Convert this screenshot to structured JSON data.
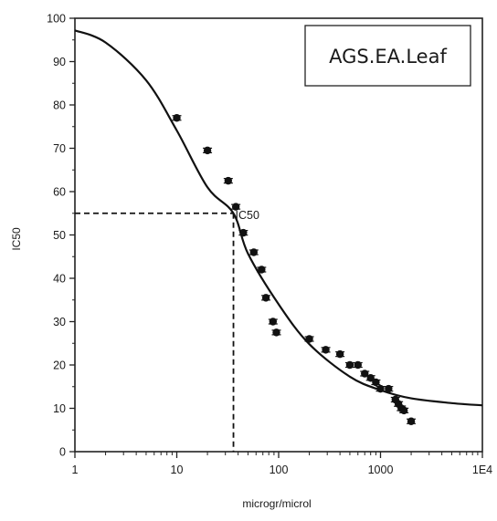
{
  "chart_data": {
    "type": "scatter",
    "title": "AGS.EA.Leaf",
    "xlabel": "microgr/microl",
    "ylabel": "IC50",
    "x_scale": "log",
    "xlim": [
      1,
      10000
    ],
    "ylim": [
      0,
      100
    ],
    "x_ticks": [
      {
        "value": 1,
        "label": "1"
      },
      {
        "value": 10,
        "label": "10"
      },
      {
        "value": 100,
        "label": "100"
      },
      {
        "value": 1000,
        "label": "1000"
      },
      {
        "value": 10000,
        "label": "1E4"
      }
    ],
    "y_ticks": [
      0,
      10,
      20,
      30,
      40,
      50,
      60,
      70,
      80,
      90,
      100
    ],
    "grid": false,
    "legend_position": "top-right",
    "series": [
      {
        "kind": "points",
        "x": [
          10,
          20,
          32,
          38,
          45,
          57,
          68,
          75,
          88,
          95,
          200,
          290,
          400,
          500,
          600,
          700,
          800,
          900,
          1000,
          1200,
          1400,
          1500,
          1600,
          1700,
          2000
        ],
        "y": [
          77,
          69.5,
          62.5,
          56.5,
          50.5,
          46,
          42,
          35.5,
          30,
          27.5,
          26,
          23.5,
          22.5,
          20,
          20,
          18,
          17,
          16,
          14.5,
          14.5,
          12,
          11,
          10,
          9.5,
          7
        ]
      },
      {
        "kind": "fit",
        "x": [
          1,
          2,
          5,
          10,
          20,
          36,
          50,
          100,
          200,
          500,
          1000,
          2000,
          5000,
          10000
        ],
        "y": [
          97.2,
          94.4,
          85.7,
          74.1,
          61.0,
          55.0,
          45.7,
          34.0,
          24.8,
          17.3,
          14.2,
          12.3,
          11.2,
          10.7
        ]
      }
    ],
    "annotation": {
      "text": "IC50",
      "x": 36,
      "y": 55
    }
  }
}
